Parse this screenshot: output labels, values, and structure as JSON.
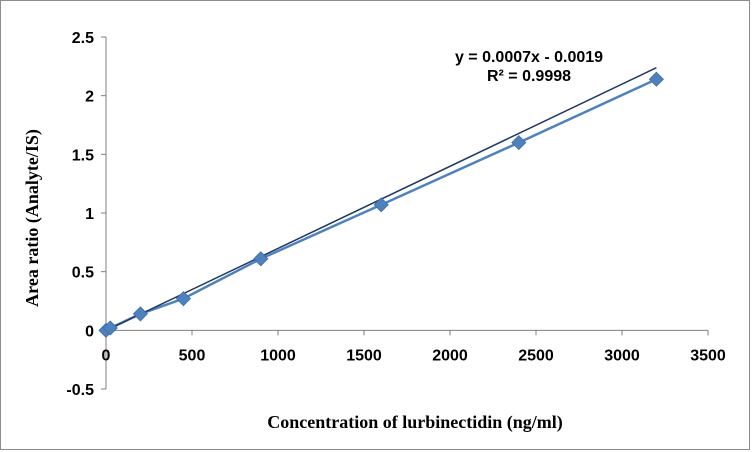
{
  "chart_data": {
    "type": "scatter",
    "title": "",
    "xlabel": "Concentration of lurbinectidin  (ng/ml)",
    "ylabel": "Area ratio (Analyte/IS)",
    "xlim": [
      0,
      3500
    ],
    "ylim": [
      -0.5,
      2.5
    ],
    "x_ticks": [
      "0",
      "500",
      "1000",
      "1500",
      "2000",
      "2500",
      "3000",
      "3500"
    ],
    "y_ticks": [
      "2.5",
      "2",
      "1.5",
      "1",
      "0.5",
      "0",
      "-0.5"
    ],
    "grid": false,
    "legend": "none",
    "series": [
      {
        "x": [
          0,
          25,
          200,
          450,
          900,
          1600,
          2400,
          3200
        ],
        "y": [
          0.0,
          0.02,
          0.14,
          0.27,
          0.61,
          1.07,
          1.6,
          2.14
        ],
        "marker": "diamond",
        "color": "#4f81bd"
      }
    ],
    "trendline": {
      "slope": 0.0007,
      "intercept": -0.0019,
      "equation": "y = 0.0007x - 0.0019",
      "r_squared": "R² = 0.9998",
      "color": "#1f3864"
    }
  }
}
